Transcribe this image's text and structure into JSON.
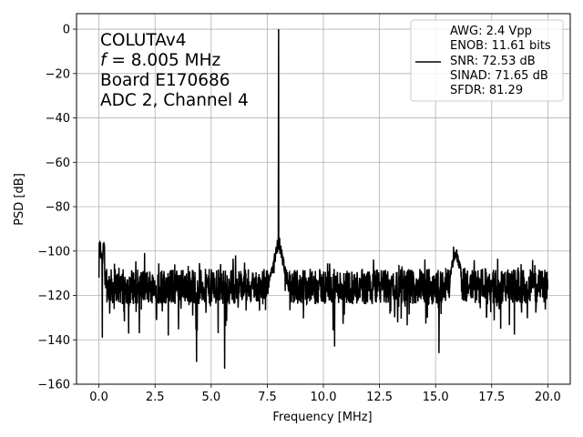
{
  "chart_data": {
    "type": "line",
    "xlabel": "Frequency [MHz]",
    "ylabel": "PSD [dB]",
    "xlim": [
      -1.0,
      21.0
    ],
    "ylim": [
      -160,
      7
    ],
    "xticks": [
      0.0,
      2.5,
      5.0,
      7.5,
      10.0,
      12.5,
      15.0,
      17.5,
      20.0
    ],
    "xtick_labels": [
      "0.0",
      "2.5",
      "5.0",
      "7.5",
      "10.0",
      "12.5",
      "15.0",
      "17.5",
      "20.0"
    ],
    "yticks": [
      0,
      -20,
      -40,
      -60,
      -80,
      -100,
      -120,
      -140,
      -160
    ],
    "ytick_labels": [
      "0",
      "−20",
      "−40",
      "−60",
      "−80",
      "−100",
      "−120",
      "−140",
      "−160"
    ],
    "grid": true,
    "line_color": "#000000",
    "annotation": {
      "line1": "COLUTAv4",
      "line2_italic": "f",
      "line2_rest": " = 8.005 MHz",
      "line3": "Board E170686",
      "line4": "ADC 2, Channel 4"
    },
    "legend": {
      "placement": "top-right",
      "lines": [
        "AWG: 2.4 Vpp",
        "ENOB: 11.61 bits",
        "SNR: 72.53 dB",
        "SINAD: 71.65 dB",
        "SFDR: 81.29"
      ]
    },
    "series": [
      {
        "fundamental_freq": 8.005,
        "fundamental_level": 0,
        "noise_floor_mean": -116,
        "x_range": [
          0.0,
          20.0
        ],
        "key_points": [
          {
            "x": 0.0,
            "y": -112
          },
          {
            "x": 0.05,
            "y": -96
          },
          {
            "x": 0.15,
            "y": -139
          },
          {
            "x": 1.8,
            "y": -137
          },
          {
            "x": 4.35,
            "y": -150
          },
          {
            "x": 5.6,
            "y": -153
          },
          {
            "x": 7.8,
            "y": -110
          },
          {
            "x": 7.95,
            "y": -95
          },
          {
            "x": 8.005,
            "y": 0
          },
          {
            "x": 8.05,
            "y": -94
          },
          {
            "x": 8.3,
            "y": -118
          },
          {
            "x": 10.5,
            "y": -143
          },
          {
            "x": 15.15,
            "y": -146
          },
          {
            "x": 15.8,
            "y": -98
          },
          {
            "x": 17.9,
            "y": -135
          },
          {
            "x": 20.0,
            "y": -117
          }
        ]
      }
    ]
  }
}
